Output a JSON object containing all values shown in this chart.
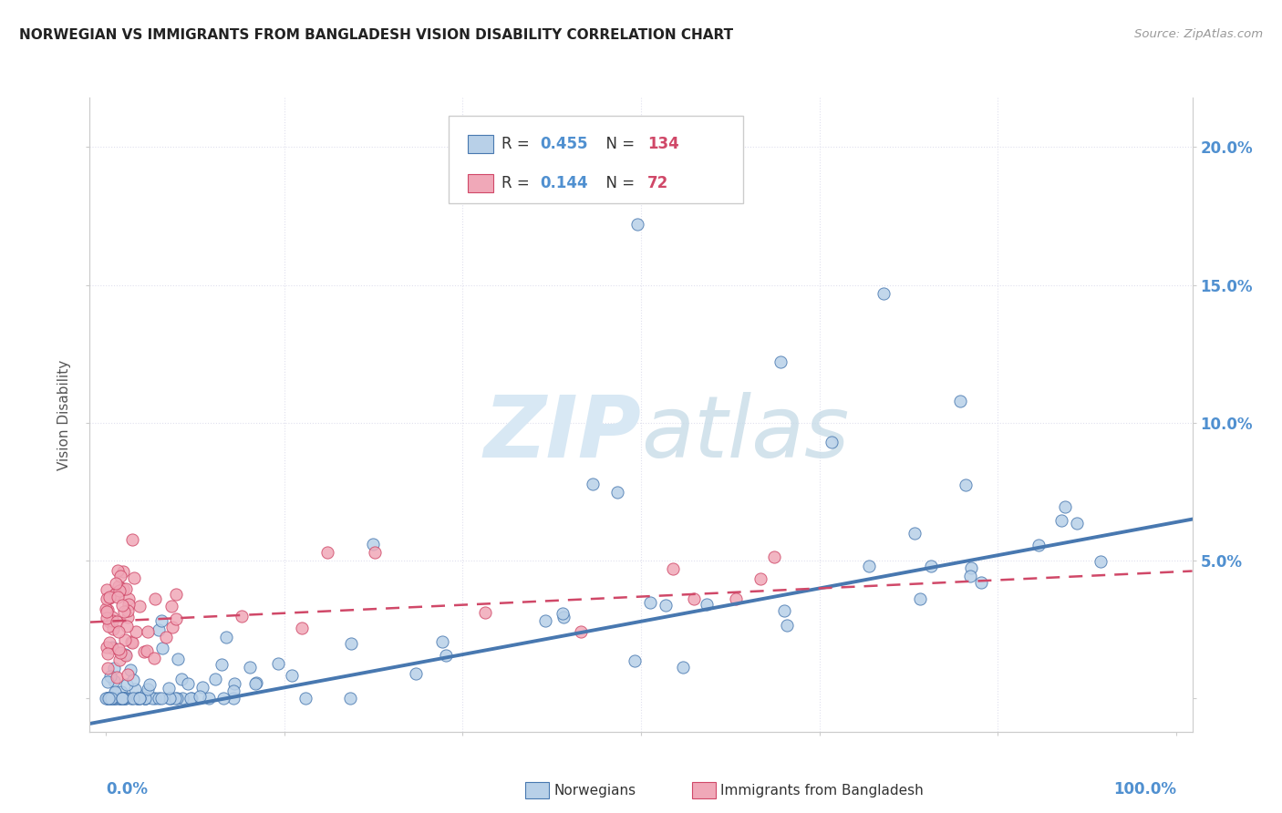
{
  "title": "NORWEGIAN VS IMMIGRANTS FROM BANGLADESH VISION DISABILITY CORRELATION CHART",
  "source": "Source: ZipAtlas.com",
  "ylabel": "Vision Disability",
  "ytick_vals": [
    0.0,
    0.05,
    0.1,
    0.15,
    0.2
  ],
  "ytick_labels": [
    "",
    "5.0%",
    "10.0%",
    "15.0%",
    "20.0%"
  ],
  "xlim": [
    -0.015,
    1.015
  ],
  "ylim": [
    -0.012,
    0.218
  ],
  "color_norwegian": "#b8d0e8",
  "color_bangladesh": "#f0a8b8",
  "color_trend_norwegian": "#4878b0",
  "color_trend_bangladesh": "#d04868",
  "color_axis_label": "#5090d0",
  "watermark_color": "#d8e8f4",
  "background_color": "#ffffff",
  "grid_color": "#e0e0ee",
  "norw_trend_slope": 0.072,
  "norw_trend_intercept": -0.008,
  "bang_trend_slope": 0.018,
  "bang_trend_intercept": 0.028
}
